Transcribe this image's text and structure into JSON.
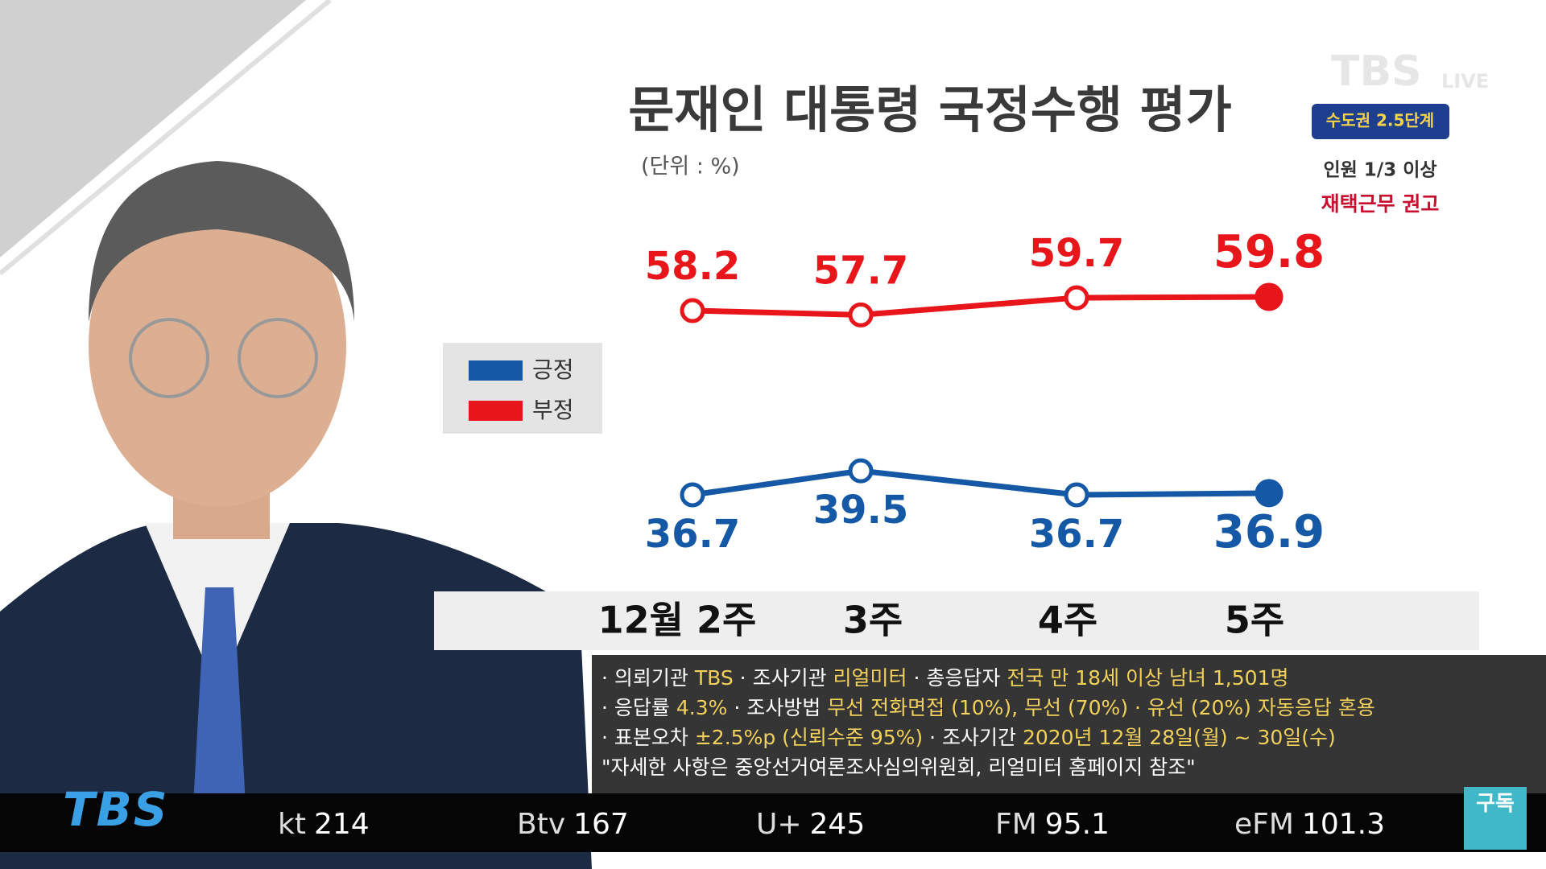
{
  "chart_data": {
    "type": "line",
    "title": "문재인 대통령 국정수행 평가",
    "subtitle": "(단위 : %)",
    "categories": [
      "12월 2주",
      "3주",
      "4주",
      "5주"
    ],
    "series": [
      {
        "name": "긍정",
        "color": "#1458a6",
        "values": [
          36.7,
          39.5,
          36.7,
          36.9
        ]
      },
      {
        "name": "부정",
        "color": "#e8161b",
        "values": [
          58.2,
          57.7,
          59.7,
          59.8
        ]
      }
    ]
  },
  "notes": [
    [
      {
        "label": "· 의뢰기관",
        "value": "TBS"
      },
      {
        "label": "· 조사기관",
        "value": "리얼미터"
      },
      {
        "label": "· 총응답자",
        "value": "전국 만 18세 이상 남녀 1,501명"
      }
    ],
    [
      {
        "label": "· 응답률",
        "value": "4.3%"
      },
      {
        "label": "· 조사방법",
        "value": "무선 전화면접 (10%), 무선 (70%) · 유선 (20%) 자동응답 혼용"
      }
    ],
    [
      {
        "label": "· 표본오차",
        "value": "±2.5%p (신뢰수준 95%)"
      },
      {
        "label": "· 조사기간",
        "value": "2020년 12월 28일(월) ~ 30일(수)"
      }
    ],
    [
      {
        "label": "\"자세한 사항은 중앙선거여론조사심의위원회, 리얼미터 홈페이지 참조\""
      }
    ]
  ],
  "overlay": {
    "logo": "TBS",
    "live": "LIVE",
    "badge": "수도권 2.5단계",
    "notice_1": "인원 1/3 이상",
    "notice_2": "재택근무 권고"
  },
  "ticker": {
    "logo": "TBS",
    "channels": [
      {
        "name": "kt",
        "number": "214"
      },
      {
        "name": "Btv",
        "number": "167"
      },
      {
        "name": "U+",
        "number": "245"
      },
      {
        "name": "FM",
        "number": "95.1"
      },
      {
        "name": "eFM",
        "number": "101.3"
      }
    ],
    "subscribe": "구독"
  }
}
